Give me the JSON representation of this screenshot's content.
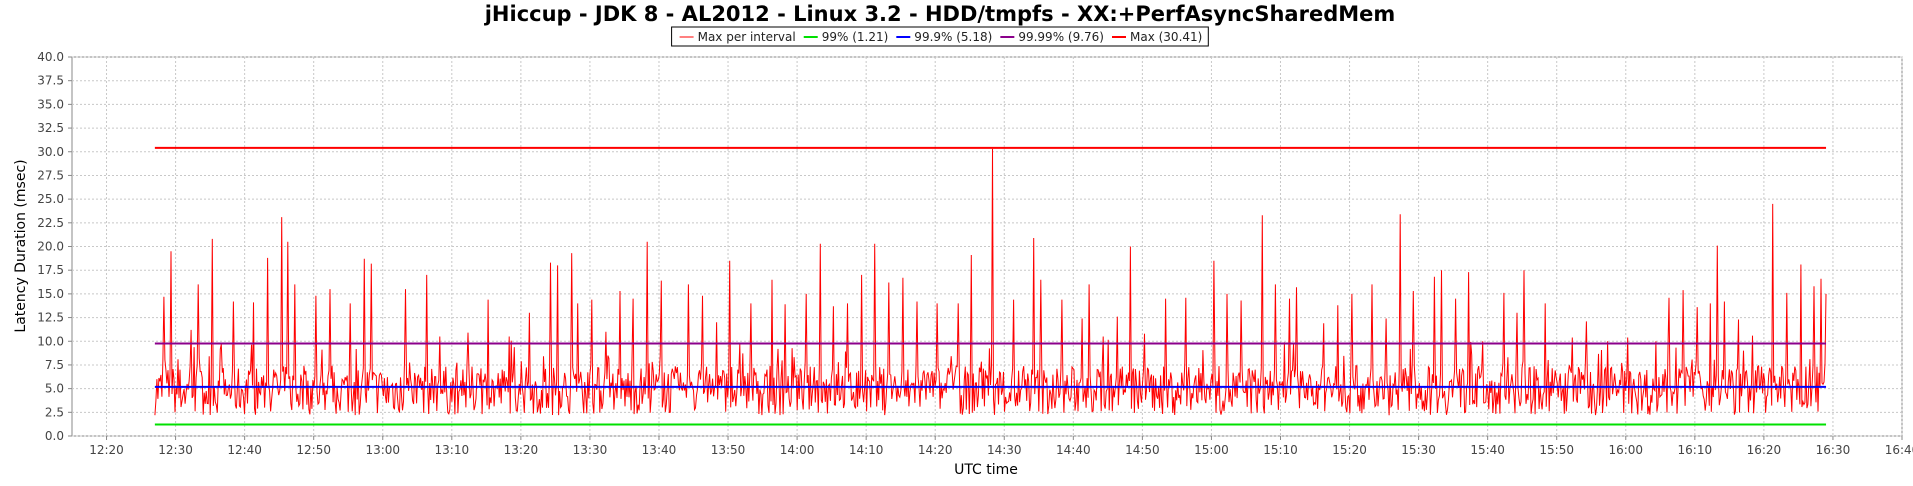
{
  "chart_data": {
    "type": "line",
    "title": "jHiccup - JDK 8 - AL2012 - Linux 3.2 - HDD/tmpfs - XX:+PerfAsyncSharedMem",
    "xlabel": "UTC time",
    "ylabel": "Latency Duration (msec)",
    "ylim": [
      0,
      40
    ],
    "y_ticks": [
      "0.0",
      "2.5",
      "5.0",
      "7.5",
      "10.0",
      "12.5",
      "15.0",
      "17.5",
      "20.0",
      "22.5",
      "25.0",
      "27.5",
      "30.0",
      "32.5",
      "35.0",
      "37.5",
      "40.0"
    ],
    "x_range_minutes": [
      735,
      1000
    ],
    "x_ticks": [
      "12:20",
      "12:30",
      "12:40",
      "12:50",
      "13:00",
      "13:10",
      "13:20",
      "13:30",
      "13:40",
      "13:50",
      "14:00",
      "14:10",
      "14:20",
      "14:30",
      "14:40",
      "14:50",
      "15:00",
      "15:10",
      "15:20",
      "15:30",
      "15:40",
      "15:50",
      "16:00",
      "16:10",
      "16:20",
      "16:30",
      "16:40"
    ],
    "x_start": "12:27",
    "x_end": "16:29",
    "grid": true,
    "legend_placement": "top-center",
    "series": [
      {
        "name": "Max per interval",
        "color": "#ff0000",
        "kind": "interval",
        "peaks": [
          [
            "12:28",
            14.7
          ],
          [
            "12:29",
            19.5
          ],
          [
            "12:32",
            11.2
          ],
          [
            "12:33",
            16.0
          ],
          [
            "12:35",
            20.8
          ],
          [
            "12:38",
            14.2
          ],
          [
            "12:41",
            14.1
          ],
          [
            "12:43",
            18.8
          ],
          [
            "12:45",
            23.1
          ],
          [
            "12:46",
            20.5
          ],
          [
            "12:47",
            16.0
          ],
          [
            "12:50",
            14.8
          ],
          [
            "12:52",
            15.5
          ],
          [
            "12:55",
            14.0
          ],
          [
            "12:57",
            18.7
          ],
          [
            "12:58",
            18.2
          ],
          [
            "13:03",
            15.5
          ],
          [
            "13:06",
            17.0
          ],
          [
            "13:08",
            10.5
          ],
          [
            "13:12",
            10.9
          ],
          [
            "13:15",
            14.4
          ],
          [
            "13:18",
            10.5
          ],
          [
            "13:21",
            13.0
          ],
          [
            "13:24",
            18.3
          ],
          [
            "13:25",
            18.0
          ],
          [
            "13:27",
            19.3
          ],
          [
            "13:28",
            14.0
          ],
          [
            "13:30",
            14.4
          ],
          [
            "13:32",
            11.0
          ],
          [
            "13:34",
            15.3
          ],
          [
            "13:36",
            14.5
          ],
          [
            "13:38",
            20.5
          ],
          [
            "13:40",
            16.4
          ],
          [
            "13:44",
            16.0
          ],
          [
            "13:46",
            14.8
          ],
          [
            "13:48",
            12.0
          ],
          [
            "13:50",
            18.5
          ],
          [
            "13:53",
            14.0
          ],
          [
            "13:56",
            16.5
          ],
          [
            "13:58",
            13.9
          ],
          [
            "14:01",
            15.0
          ],
          [
            "14:03",
            20.3
          ],
          [
            "14:05",
            13.7
          ],
          [
            "14:07",
            14.0
          ],
          [
            "14:09",
            17.0
          ],
          [
            "14:11",
            20.3
          ],
          [
            "14:13",
            16.2
          ],
          [
            "14:15",
            16.7
          ],
          [
            "14:17",
            14.2
          ],
          [
            "14:20",
            14.0
          ],
          [
            "14:23",
            14.0
          ],
          [
            "14:25",
            19.1
          ],
          [
            "14:28",
            30.3
          ],
          [
            "14:31",
            14.4
          ],
          [
            "14:34",
            20.9
          ],
          [
            "14:35",
            16.5
          ],
          [
            "14:38",
            14.4
          ],
          [
            "14:41",
            12.4
          ],
          [
            "14:42",
            16.0
          ],
          [
            "14:44",
            10.5
          ],
          [
            "14:46",
            12.6
          ],
          [
            "14:48",
            20.0
          ],
          [
            "14:50",
            10.8
          ],
          [
            "14:53",
            14.5
          ],
          [
            "14:56",
            14.6
          ],
          [
            "15:00",
            18.5
          ],
          [
            "15:02",
            15.0
          ],
          [
            "15:04",
            14.3
          ],
          [
            "15:07",
            23.3
          ],
          [
            "15:09",
            16.0
          ],
          [
            "15:11",
            14.5
          ],
          [
            "15:12",
            15.7
          ],
          [
            "15:16",
            11.9
          ],
          [
            "15:18",
            13.8
          ],
          [
            "15:20",
            15.0
          ],
          [
            "15:23",
            16.0
          ],
          [
            "15:25",
            12.4
          ],
          [
            "15:27",
            23.4
          ],
          [
            "15:29",
            15.3
          ],
          [
            "15:32",
            16.8
          ],
          [
            "15:33",
            17.5
          ],
          [
            "15:35",
            14.5
          ],
          [
            "15:37",
            17.3
          ],
          [
            "15:39",
            10.0
          ],
          [
            "15:42",
            15.1
          ],
          [
            "15:44",
            13.0
          ],
          [
            "15:45",
            17.5
          ],
          [
            "15:48",
            14.0
          ],
          [
            "15:52",
            10.4
          ],
          [
            "15:54",
            12.1
          ],
          [
            "15:57",
            10.0
          ],
          [
            "16:00",
            10.4
          ],
          [
            "16:04",
            10.0
          ],
          [
            "16:06",
            14.6
          ],
          [
            "16:08",
            15.4
          ],
          [
            "16:10",
            13.6
          ],
          [
            "16:12",
            14.0
          ],
          [
            "16:13",
            20.1
          ],
          [
            "16:14",
            14.2
          ],
          [
            "16:16",
            12.3
          ],
          [
            "16:18",
            10.6
          ],
          [
            "16:21",
            24.5
          ],
          [
            "16:23",
            15.1
          ],
          [
            "16:25",
            18.1
          ],
          [
            "16:27",
            15.8
          ],
          [
            "16:28",
            16.6
          ],
          [
            "16:29",
            15.0
          ]
        ]
      },
      {
        "name": "99% (1.21)",
        "color": "#00e000",
        "value": 1.21
      },
      {
        "name": "99.9% (5.18)",
        "color": "#0000ff",
        "value": 5.18
      },
      {
        "name": "99.99% (9.76)",
        "color": "#8b008b",
        "value": 9.76
      },
      {
        "name": "Max (30.41)",
        "color": "#ff0000",
        "value": 30.41
      }
    ]
  }
}
